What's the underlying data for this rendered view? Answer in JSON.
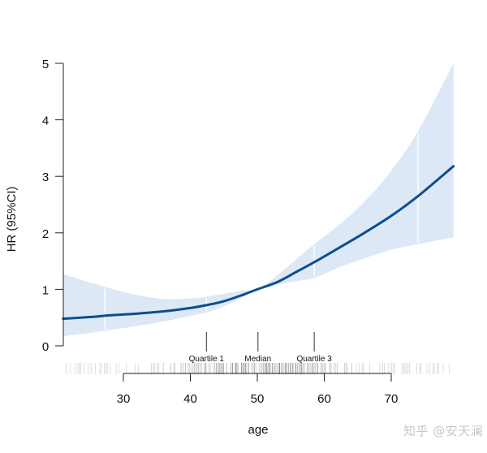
{
  "chart_data": {
    "type": "line",
    "title": "",
    "xlabel": "age",
    "ylabel": "HR (95%CI)",
    "xlim": [
      21,
      79.3
    ],
    "ylim": [
      0,
      5
    ],
    "x_ticks": [
      30,
      40,
      50,
      60,
      70
    ],
    "y_ticks": [
      0,
      1,
      2,
      3,
      4,
      5
    ],
    "grid": false,
    "legend": null,
    "reference": {
      "x": 50,
      "hr": 1
    },
    "series": [
      {
        "name": "HR",
        "color": "#0b4f8f",
        "x": [
          21,
          25,
          28,
          32,
          36,
          40,
          42.4,
          45,
          48,
          50,
          53,
          56,
          58.5,
          62,
          66,
          70,
          74,
          79.3
        ],
        "values": [
          0.48,
          0.51,
          0.54,
          0.57,
          0.61,
          0.67,
          0.72,
          0.79,
          0.91,
          1.0,
          1.13,
          1.32,
          1.48,
          1.72,
          2.0,
          2.3,
          2.65,
          3.18
        ]
      },
      {
        "name": "95% CI lower",
        "color": "#dce8f5",
        "x": [
          21,
          25,
          28,
          32,
          36,
          40,
          42.4,
          45,
          48,
          50,
          53,
          56,
          58.5,
          62,
          66,
          70,
          74,
          79.3
        ],
        "values": [
          0.17,
          0.23,
          0.28,
          0.35,
          0.43,
          0.53,
          0.59,
          0.7,
          0.87,
          1.0,
          1.08,
          1.15,
          1.2,
          1.38,
          1.55,
          1.7,
          1.8,
          1.92
        ]
      },
      {
        "name": "95% CI upper",
        "color": "#dce8f5",
        "x": [
          21,
          25,
          28,
          32,
          36,
          40,
          42.4,
          45,
          48,
          50,
          53,
          56,
          58.5,
          62,
          66,
          70,
          74,
          79.3
        ],
        "values": [
          1.27,
          1.12,
          1.02,
          0.9,
          0.83,
          0.84,
          0.87,
          0.92,
          0.98,
          1.0,
          1.25,
          1.55,
          1.8,
          2.12,
          2.55,
          3.1,
          3.8,
          5.0
        ]
      }
    ],
    "annotations": [
      {
        "label": "Quartile 1",
        "x": 42.4
      },
      {
        "label": "Median",
        "x": 50.1
      },
      {
        "label": "Quartile 3",
        "x": 58.5
      }
    ],
    "knot_lines_x": [
      27.2,
      42.4,
      58.5,
      74.0
    ],
    "rug": "dense tick marks of individual ages across 21-79, darkest between ~40 and ~62"
  },
  "watermark": "知乎 @安天澜",
  "colors": {
    "curve": "#0b4f8f",
    "ci_band": "#dce8f5",
    "axis": "#222222",
    "rug": "#808080"
  }
}
